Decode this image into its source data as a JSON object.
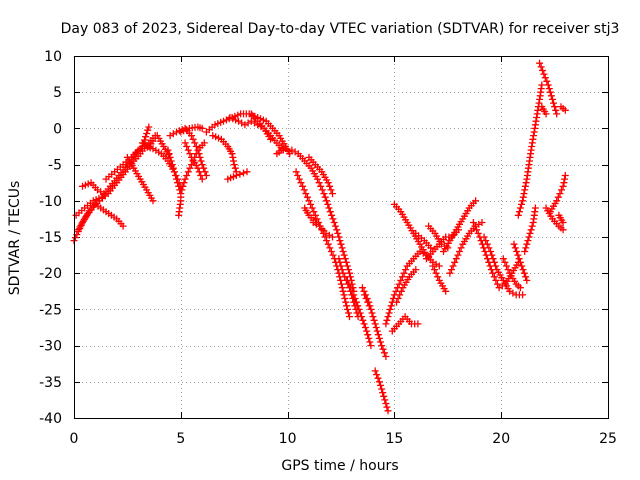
{
  "chart_data": {
    "type": "scatter",
    "title": "Day 083 of 2023, Sidereal Day-to-day VTEC variation (SDTVAR) for receiver stj3",
    "xlabel": "GPS time / hours",
    "ylabel": "SDTVAR / TECUs",
    "xlim": [
      0,
      25
    ],
    "ylim": [
      -40,
      10
    ],
    "xticks": [
      "0",
      "5",
      "10",
      "15",
      "20",
      "25"
    ],
    "yticks": [
      "-40",
      "-35",
      "-30",
      "-25",
      "-20",
      "-15",
      "-10",
      "-5",
      "0",
      "5",
      "10"
    ],
    "grid": true,
    "marker": "+",
    "marker_color": "#ff0000",
    "tracks": [
      [
        [
          0.0,
          -15.5
        ],
        [
          0.4,
          -13
        ],
        [
          0.8,
          -11
        ],
        [
          1.2,
          -10
        ],
        [
          1.6,
          -9
        ],
        [
          2.0,
          -7.5
        ],
        [
          2.4,
          -6
        ],
        [
          2.8,
          -4.5
        ],
        [
          3.1,
          -3.5
        ],
        [
          3.5,
          -2
        ],
        [
          3.8,
          -1
        ]
      ],
      [
        [
          0.1,
          -12
        ],
        [
          0.5,
          -11
        ],
        [
          0.9,
          -10
        ],
        [
          1.3,
          -9.5
        ],
        [
          1.7,
          -8
        ],
        [
          2.1,
          -6.5
        ],
        [
          2.5,
          -5
        ],
        [
          2.9,
          -3.5
        ],
        [
          3.2,
          -2.5
        ],
        [
          3.5,
          0.2
        ]
      ],
      [
        [
          0.2,
          -14
        ],
        [
          0.6,
          -12
        ],
        [
          1.0,
          -10.5
        ],
        [
          1.5,
          -11.5
        ],
        [
          2.0,
          -12.5
        ],
        [
          2.3,
          -13.5
        ]
      ],
      [
        [
          0.4,
          -8
        ],
        [
          0.8,
          -7.5
        ],
        [
          1.1,
          -8.5
        ],
        [
          1.4,
          -9
        ]
      ],
      [
        [
          1.5,
          -7
        ],
        [
          1.9,
          -6
        ],
        [
          2.3,
          -5
        ],
        [
          2.7,
          -4
        ],
        [
          3.0,
          -3
        ],
        [
          3.3,
          -2.5
        ],
        [
          3.7,
          -2.8
        ],
        [
          4.1,
          -3.5
        ],
        [
          4.4,
          -4.5
        ],
        [
          4.7,
          -6
        ],
        [
          5.0,
          -8
        ],
        [
          5.0,
          -10
        ],
        [
          4.9,
          -12
        ]
      ],
      [
        [
          2.5,
          -4
        ],
        [
          2.8,
          -5.5
        ],
        [
          3.1,
          -7
        ],
        [
          3.4,
          -8.5
        ],
        [
          3.7,
          -10
        ]
      ],
      [
        [
          3.2,
          -2
        ],
        [
          3.5,
          -2.5
        ],
        [
          3.9,
          -1
        ],
        [
          4.2,
          -2.5
        ],
        [
          4.5,
          -4
        ]
      ],
      [
        [
          4.4,
          -3
        ],
        [
          4.6,
          -5
        ],
        [
          4.8,
          -7
        ],
        [
          5.0,
          -9
        ],
        [
          5.2,
          -7
        ],
        [
          5.5,
          -5
        ],
        [
          5.8,
          -3
        ],
        [
          6.1,
          -2
        ]
      ],
      [
        [
          4.5,
          -1
        ],
        [
          4.8,
          -0.5
        ],
        [
          5.2,
          0
        ],
        [
          5.5,
          -1
        ],
        [
          5.8,
          -3
        ],
        [
          6.0,
          -5
        ],
        [
          6.2,
          -6.5
        ]
      ],
      [
        [
          5.0,
          -0.5
        ],
        [
          5.4,
          0
        ],
        [
          5.8,
          0.2
        ],
        [
          6.0,
          0
        ]
      ],
      [
        [
          5.2,
          -2
        ],
        [
          5.5,
          -4
        ],
        [
          5.8,
          -5.5
        ],
        [
          6.0,
          -7
        ]
      ],
      [
        [
          6.2,
          -0.5
        ],
        [
          6.6,
          0.5
        ],
        [
          7.0,
          1
        ],
        [
          7.4,
          1.5
        ],
        [
          7.8,
          2
        ],
        [
          8.2,
          2
        ],
        [
          8.6,
          1.5
        ],
        [
          9.0,
          1
        ],
        [
          9.3,
          0
        ],
        [
          9.6,
          -1
        ],
        [
          9.9,
          -2.5
        ],
        [
          10.1,
          -3.5
        ]
      ],
      [
        [
          6.5,
          -1
        ],
        [
          6.9,
          -1.5
        ],
        [
          7.2,
          -2.5
        ],
        [
          7.4,
          -3.5
        ],
        [
          7.5,
          -5
        ],
        [
          7.6,
          -6
        ]
      ],
      [
        [
          7.3,
          1.5
        ],
        [
          7.7,
          1
        ],
        [
          8.0,
          0.5
        ],
        [
          8.3,
          1
        ],
        [
          8.6,
          0.5
        ],
        [
          8.9,
          0
        ],
        [
          9.2,
          -1.5
        ]
      ],
      [
        [
          8.3,
          2
        ],
        [
          8.6,
          1
        ],
        [
          8.9,
          0
        ],
        [
          9.2,
          -1
        ],
        [
          9.5,
          -2
        ],
        [
          9.8,
          -3
        ]
      ],
      [
        [
          7.2,
          -7
        ],
        [
          7.6,
          -6.5
        ],
        [
          8.1,
          -6
        ]
      ],
      [
        [
          9.5,
          -3.5
        ],
        [
          9.8,
          -2.8
        ]
      ],
      [
        [
          10.2,
          -3
        ],
        [
          10.5,
          -3.5
        ],
        [
          10.8,
          -4.5
        ],
        [
          11.1,
          -5.5
        ],
        [
          11.4,
          -7
        ],
        [
          11.7,
          -9
        ],
        [
          12.0,
          -11.5
        ],
        [
          12.3,
          -14
        ],
        [
          12.6,
          -17
        ],
        [
          12.9,
          -20
        ],
        [
          13.1,
          -22.5
        ]
      ],
      [
        [
          10.4,
          -6
        ],
        [
          10.7,
          -8
        ],
        [
          11.0,
          -10
        ],
        [
          11.3,
          -12
        ],
        [
          11.6,
          -14
        ],
        [
          11.9,
          -16
        ],
        [
          12.2,
          -18
        ],
        [
          12.4,
          -20
        ],
        [
          12.6,
          -22.5
        ],
        [
          12.8,
          -25
        ],
        [
          12.9,
          -26
        ]
      ],
      [
        [
          11.0,
          -4
        ],
        [
          11.3,
          -5
        ],
        [
          11.6,
          -6
        ],
        [
          11.9,
          -7.5
        ],
        [
          12.1,
          -9
        ]
      ],
      [
        [
          11.2,
          -13
        ],
        [
          11.5,
          -13.5
        ],
        [
          11.8,
          -14.5
        ],
        [
          12.1,
          -15
        ]
      ],
      [
        [
          10.8,
          -11
        ],
        [
          11.0,
          -12
        ],
        [
          11.3,
          -13
        ]
      ],
      [
        [
          12.4,
          -18
        ],
        [
          12.6,
          -20
        ],
        [
          12.9,
          -22
        ],
        [
          13.1,
          -24
        ],
        [
          13.3,
          -26
        ]
      ],
      [
        [
          12.8,
          -21
        ],
        [
          13.1,
          -23
        ],
        [
          13.4,
          -25.5
        ],
        [
          13.7,
          -28
        ],
        [
          13.9,
          -30
        ]
      ],
      [
        [
          13.5,
          -22
        ],
        [
          13.8,
          -24
        ],
        [
          14.0,
          -26
        ],
        [
          14.2,
          -28
        ],
        [
          14.4,
          -30
        ],
        [
          14.6,
          -31.5
        ]
      ],
      [
        [
          13.6,
          -23
        ],
        [
          13.9,
          -25
        ],
        [
          14.1,
          -27
        ]
      ],
      [
        [
          14.1,
          -33.5
        ],
        [
          14.3,
          -35
        ],
        [
          14.5,
          -37
        ],
        [
          14.7,
          -39
        ]
      ],
      [
        [
          14.6,
          -27
        ],
        [
          14.8,
          -25
        ],
        [
          15.0,
          -23
        ],
        [
          15.3,
          -21
        ],
        [
          15.6,
          -19
        ],
        [
          15.9,
          -18
        ],
        [
          16.2,
          -17
        ],
        [
          16.5,
          -17.5
        ],
        [
          16.8,
          -18.5
        ],
        [
          17.1,
          -19
        ]
      ],
      [
        [
          14.9,
          -28
        ],
        [
          15.2,
          -27
        ],
        [
          15.5,
          -26
        ],
        [
          15.8,
          -27
        ],
        [
          16.1,
          -27
        ]
      ],
      [
        [
          15.1,
          -24
        ],
        [
          15.4,
          -22
        ],
        [
          15.7,
          -20.5
        ],
        [
          16.0,
          -19.5
        ]
      ],
      [
        [
          15.0,
          -10.5
        ],
        [
          15.3,
          -11.5
        ],
        [
          15.6,
          -13
        ],
        [
          15.9,
          -14.5
        ],
        [
          16.2,
          -16
        ],
        [
          16.5,
          -17.5
        ]
      ],
      [
        [
          16.0,
          -14.5
        ],
        [
          16.4,
          -15.5
        ],
        [
          16.7,
          -16.5
        ]
      ],
      [
        [
          16.8,
          -19
        ],
        [
          17.1,
          -21
        ],
        [
          17.4,
          -22.5
        ]
      ],
      [
        [
          16.5,
          -18
        ],
        [
          16.8,
          -17
        ],
        [
          17.1,
          -16
        ],
        [
          17.4,
          -15
        ],
        [
          17.7,
          -15
        ],
        [
          18.0,
          -14
        ]
      ],
      [
        [
          16.6,
          -13.5
        ],
        [
          16.9,
          -14.5
        ],
        [
          17.2,
          -16
        ],
        [
          17.5,
          -16.5
        ]
      ],
      [
        [
          17.3,
          -17
        ],
        [
          17.6,
          -15.5
        ],
        [
          17.9,
          -14
        ],
        [
          18.2,
          -12.5
        ],
        [
          18.5,
          -11
        ],
        [
          18.8,
          -10
        ]
      ],
      [
        [
          17.6,
          -20
        ],
        [
          17.9,
          -18
        ],
        [
          18.2,
          -16
        ],
        [
          18.5,
          -14.5
        ],
        [
          18.8,
          -13.5
        ],
        [
          19.1,
          -13
        ]
      ],
      [
        [
          18.7,
          -13
        ],
        [
          19.0,
          -15
        ],
        [
          19.3,
          -17.5
        ],
        [
          19.6,
          -20
        ],
        [
          19.9,
          -22
        ],
        [
          20.2,
          -21.5
        ],
        [
          20.5,
          -20
        ],
        [
          20.8,
          -18.5
        ]
      ],
      [
        [
          19.2,
          -15
        ],
        [
          19.5,
          -17
        ],
        [
          19.8,
          -19.5
        ],
        [
          20.1,
          -21
        ],
        [
          20.4,
          -22.5
        ],
        [
          20.7,
          -23
        ],
        [
          21.0,
          -23
        ]
      ],
      [
        [
          20.1,
          -18
        ],
        [
          20.4,
          -20
        ],
        [
          20.7,
          -21.5
        ],
        [
          20.9,
          -22
        ]
      ],
      [
        [
          20.6,
          -16
        ],
        [
          20.9,
          -18.5
        ],
        [
          21.2,
          -21
        ]
      ],
      [
        [
          20.8,
          -12
        ],
        [
          21.0,
          -10
        ],
        [
          21.2,
          -7
        ],
        [
          21.4,
          -3
        ],
        [
          21.6,
          0.5
        ],
        [
          21.8,
          4
        ],
        [
          21.9,
          6
        ]
      ],
      [
        [
          21.1,
          -17
        ],
        [
          21.3,
          -15
        ],
        [
          21.5,
          -13
        ],
        [
          21.6,
          -11
        ]
      ],
      [
        [
          21.8,
          9
        ],
        [
          22.0,
          7.5
        ],
        [
          22.2,
          6
        ],
        [
          22.4,
          4
        ],
        [
          22.6,
          2
        ]
      ],
      [
        [
          21.9,
          3
        ],
        [
          22.1,
          2
        ]
      ],
      [
        [
          22.1,
          -11
        ],
        [
          22.4,
          -12.5
        ],
        [
          22.7,
          -13.5
        ],
        [
          22.9,
          -14
        ]
      ],
      [
        [
          22.3,
          -11.5
        ],
        [
          22.6,
          -10
        ],
        [
          22.9,
          -8
        ],
        [
          23.0,
          -6.5
        ]
      ],
      [
        [
          22.8,
          3
        ],
        [
          23.0,
          2.5
        ]
      ],
      [
        [
          22.7,
          -12
        ],
        [
          22.9,
          -13
        ]
      ]
    ]
  }
}
